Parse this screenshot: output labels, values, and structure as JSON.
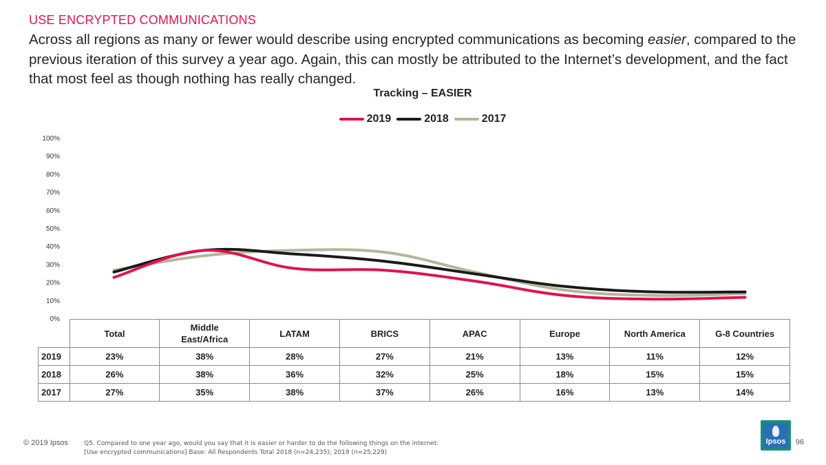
{
  "header": {
    "section_title": "USE ENCRYPTED COMMUNICATIONS",
    "headline_part1": "Across all regions as many or fewer would describe using encrypted communications as becoming ",
    "headline_emphasis": "easier",
    "headline_part2": ", compared to the previous iteration of this survey a year ago. Again, this can mostly be attributed to the Internet’s development, and the fact that most feel as though nothing has really changed."
  },
  "colors": {
    "2019": "#e0134f",
    "2018": "#1a1a1a",
    "2017": "#b5b59a"
  },
  "chart_data": {
    "type": "line",
    "title": "Tracking – EASIER",
    "categories": [
      "Total",
      "Middle East/Africa",
      "LATAM",
      "BRICS",
      "APAC",
      "Europe",
      "North America",
      "G-8 Countries"
    ],
    "category_labels_display": [
      "Total",
      "Middle East/Africa",
      "LATAM",
      "BRICS",
      "APAC",
      "Europe",
      "North America",
      "G-8 Countries"
    ],
    "series": [
      {
        "name": "2019",
        "values": [
          23,
          38,
          28,
          27,
          21,
          13,
          11,
          12
        ]
      },
      {
        "name": "2018",
        "values": [
          26,
          38,
          36,
          32,
          25,
          18,
          15,
          15
        ]
      },
      {
        "name": "2017",
        "values": [
          27,
          35,
          38,
          37,
          26,
          16,
          13,
          14
        ]
      }
    ],
    "ylim": [
      0,
      100
    ],
    "yticks": [
      "0%",
      "10%",
      "20%",
      "30%",
      "40%",
      "50%",
      "60%",
      "70%",
      "80%",
      "90%",
      "100%"
    ],
    "value_suffix": "%",
    "legend_position": "top-center",
    "grid": false
  },
  "footer": {
    "copyright": "© 2019 Ipsos",
    "note_line1": "Q5. Compared to one year ago, would you say that it is easier or harder to do the following things on the internet:",
    "note_line2": "[Use encrypted communications] Base: All Respondents Total 2018 (n=24,235); 2019 (n=25,229)",
    "page_number": "96",
    "logo_text": "Ipsos"
  }
}
